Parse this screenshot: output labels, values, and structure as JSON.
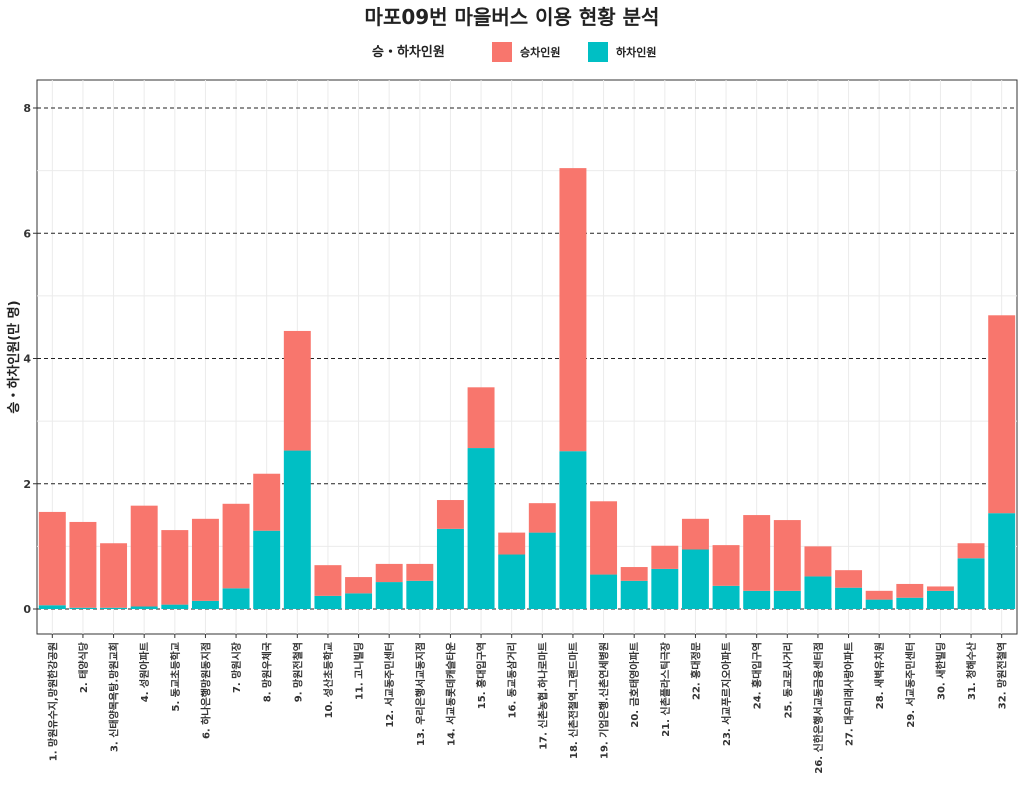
{
  "chart_data": {
    "type": "bar",
    "stacked": true,
    "title": "마포09번 마을버스 이용 현황 분석",
    "ylabel": "승・하차인원(만 명)",
    "xlabel": "",
    "ylim": [
      0,
      8
    ],
    "yticks": [
      0,
      2,
      4,
      6,
      8
    ],
    "grid": true,
    "legend": {
      "title": "승・하차인원",
      "position": "top"
    },
    "categories": [
      "1. 망원유수지,망원한강공원",
      "2. 태양식당",
      "3. 신태양목욕탕.망원교회",
      "4. 성원아파트",
      "5. 동교초등학교",
      "6. 하나은행망원동지점",
      "7. 망원시장",
      "8. 망원우체국",
      "9. 망원전철역",
      "10. 성산초등학교",
      "11. 고니빌딩",
      "12. 서교동주민센터",
      "13. 우리은행서교동지점",
      "14. 서교동롯데캐슬타운",
      "15. 홍대입구역",
      "16. 동교동삼거리",
      "17. 신촌농협.하나로마트",
      "18. 신촌전철역.그랜드마트",
      "19. 기업은행.신촌연세병원",
      "20. 금호태영아파트",
      "21. 신촌플라스틱극장",
      "22. 홍대정문",
      "23. 서교푸르지오아파트",
      "24. 홍대입구역",
      "25. 동교로사거리",
      "26. 신한은행서교동금융센터점",
      "27. 대우미래사랑아파트",
      "28. 새벽유치원",
      "29. 서교동주민센터",
      "30. 새한빌딩",
      "31. 청해수산",
      "32. 망원전철역"
    ],
    "series": [
      {
        "name": "하차인원",
        "color": "#00BFC4",
        "values": [
          0.06,
          0.02,
          0.02,
          0.04,
          0.07,
          0.13,
          0.33,
          1.25,
          2.53,
          0.21,
          0.25,
          0.43,
          0.45,
          1.28,
          2.57,
          0.87,
          1.22,
          2.52,
          0.55,
          0.45,
          0.64,
          0.95,
          0.37,
          0.29,
          0.29,
          0.52,
          0.34,
          0.15,
          0.18,
          0.29,
          0.81,
          1.53
        ]
      },
      {
        "name": "승차인원",
        "color": "#F8766D",
        "values": [
          1.49,
          1.37,
          1.03,
          1.61,
          1.19,
          1.31,
          1.35,
          0.91,
          1.91,
          0.49,
          0.26,
          0.29,
          0.27,
          0.46,
          0.97,
          0.35,
          0.47,
          4.52,
          1.17,
          0.22,
          0.37,
          0.49,
          0.65,
          1.21,
          1.13,
          0.48,
          0.28,
          0.14,
          0.22,
          0.07,
          0.24,
          3.16
        ]
      }
    ]
  }
}
